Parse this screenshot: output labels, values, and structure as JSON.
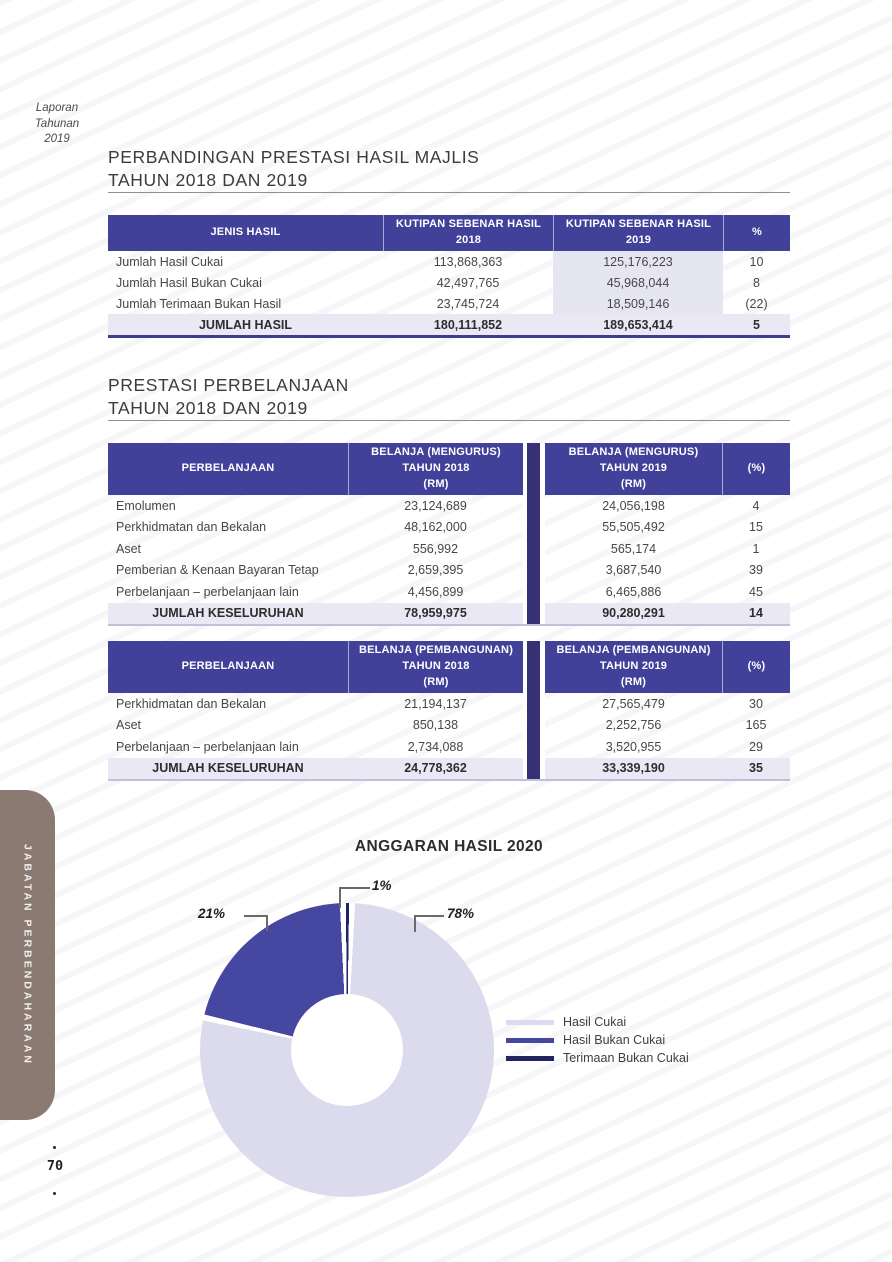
{
  "colors": {
    "header_blue": "#41419a",
    "divider_bar_navy": "#353174",
    "lavender_row": "#e9e8f4",
    "lavender_col": "#e6e5f2",
    "table_border_dark": "#3d3d90",
    "table_border_light": "#c0c0de",
    "sidebar_taupe": "#8a7a72"
  },
  "brand": {
    "line1": "Laporan",
    "line2": "Tahunan",
    "line3": "2019"
  },
  "sidebar": {
    "label": "JABATAN PERBENDAHARAAN"
  },
  "footer": {
    "page_number": "70"
  },
  "section_hasil": {
    "title_line1": "PERBANDINGAN PRESTASI HASIL MAJLIS",
    "title_line2": "TAHUN 2018 DAN 2019",
    "table": {
      "headers": [
        "JENIS HASIL",
        "KUTIPAN SEBENAR HASIL\n2018",
        "KUTIPAN SEBENAR HASIL\n2019",
        "%"
      ],
      "rows": [
        {
          "label": "Jumlah Hasil Cukai",
          "y2018": "113,868,363",
          "y2019": "125,176,223",
          "pct": "10"
        },
        {
          "label": "Jumlah Hasil Bukan Cukai",
          "y2018": "42,497,765",
          "y2019": "45,968,044",
          "pct": "8"
        },
        {
          "label": "Jumlah Terimaan Bukan Hasil",
          "y2018": "23,745,724",
          "y2019": "18,509,146",
          "pct": "(22)"
        }
      ],
      "total": {
        "label": "JUMLAH HASIL",
        "y2018": "180,111,852",
        "y2019": "189,653,414",
        "pct": "5"
      }
    }
  },
  "section_perbelanjaan": {
    "title_line1": "PRESTASI PERBELANJAAN",
    "title_line2": "TAHUN 2018 DAN 2019",
    "table_mengurus": {
      "headers": [
        "PERBELANJAAN",
        "BELANJA (MENGURUS)\nTAHUN 2018\n(RM)",
        "BELANJA (MENGURUS)\nTAHUN 2019\n(RM)",
        "(%)"
      ],
      "rows": [
        {
          "label": "Emolumen",
          "y2018": "23,124,689",
          "y2019": "24,056,198",
          "pct": "4"
        },
        {
          "label": "Perkhidmatan dan Bekalan",
          "y2018": "48,162,000",
          "y2019": "55,505,492",
          "pct": "15"
        },
        {
          "label": "Aset",
          "y2018": "556,992",
          "y2019": "565,174",
          "pct": "1"
        },
        {
          "label": "Pemberian & Kenaan Bayaran Tetap",
          "y2018": "2,659,395",
          "y2019": "3,687,540",
          "pct": "39"
        },
        {
          "label": "Perbelanjaan – perbelanjaan lain",
          "y2018": "4,456,899",
          "y2019": "6,465,886",
          "pct": "45"
        }
      ],
      "total": {
        "label": "JUMLAH KESELURUHAN",
        "y2018": "78,959,975",
        "y2019": "90,280,291",
        "pct": "14"
      }
    },
    "table_pembangunan": {
      "headers": [
        "PERBELANJAAN",
        "BELANJA (PEMBANGUNAN)\nTAHUN 2018\n(RM)",
        "BELANJA (PEMBANGUNAN)\nTAHUN 2019\n(RM)",
        "(%)"
      ],
      "rows": [
        {
          "label": "Perkhidmatan dan Bekalan",
          "y2018": "21,194,137",
          "y2019": "27,565,479",
          "pct": "30"
        },
        {
          "label": "Aset",
          "y2018": "850,138",
          "y2019": "2,252,756",
          "pct": "165"
        },
        {
          "label": "Perbelanjaan – perbelanjaan lain",
          "y2018": "2,734,088",
          "y2019": "3,520,955",
          "pct": "29"
        }
      ],
      "total": {
        "label": "JUMLAH KESELURUHAN",
        "y2018": "24,778,362",
        "y2019": "33,339,190",
        "pct": "35"
      }
    }
  },
  "chart_data": {
    "type": "pie",
    "donut": true,
    "title": "ANGGARAN HASIL 2020",
    "start_angle_deg": 2,
    "direction": "clockwise",
    "legend_position": "right",
    "slices": [
      {
        "label": "Hasil Cukai",
        "value": 78,
        "pct_label": "78%",
        "color": "#dcdbed"
      },
      {
        "label": "Hasil Bukan Cukai",
        "value": 21,
        "pct_label": "21%",
        "color": "#4547a0"
      },
      {
        "label": "Terimaan Bukan Cukai",
        "value": 1,
        "pct_label": "1%",
        "color": "#20255f"
      }
    ]
  }
}
